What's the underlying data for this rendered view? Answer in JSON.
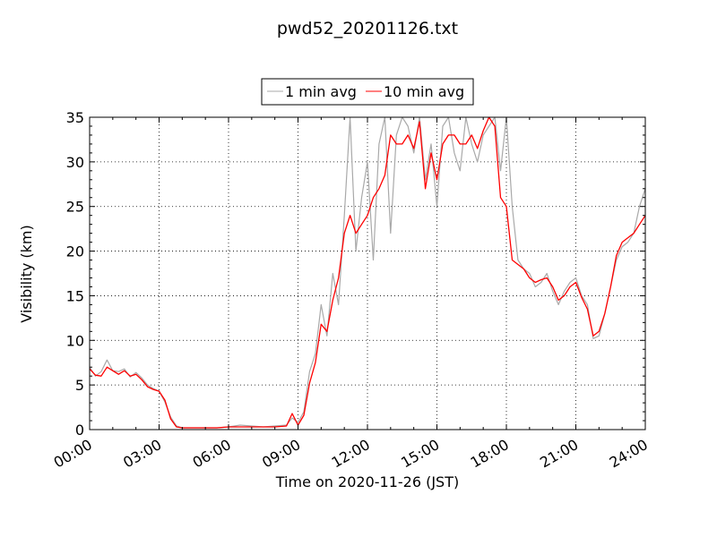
{
  "chart_data": {
    "type": "line",
    "title": "pwd52_20201126.txt",
    "xlabel": "Time on 2020-11-26 (JST)",
    "ylabel": "Visibility (km)",
    "xlim": [
      "00:00",
      "24:00"
    ],
    "ylim": [
      0,
      35
    ],
    "xticks": [
      "00:00",
      "03:00",
      "06:00",
      "09:00",
      "12:00",
      "15:00",
      "18:00",
      "21:00",
      "24:00"
    ],
    "yticks": [
      "0",
      "5",
      "10",
      "15",
      "20",
      "25",
      "30",
      "35"
    ],
    "grid": true,
    "legend_position": "top-center",
    "x_unit": "hours",
    "series": [
      {
        "name": "1 min avg",
        "color": "#a9a9a9",
        "x": [
          0,
          0.25,
          0.5,
          0.75,
          1.0,
          1.25,
          1.5,
          1.75,
          2.0,
          2.25,
          2.5,
          2.75,
          3.0,
          3.25,
          3.5,
          3.75,
          4.0,
          4.5,
          5.0,
          5.5,
          6.0,
          6.5,
          7.0,
          7.5,
          8.0,
          8.5,
          8.75,
          9.0,
          9.25,
          9.5,
          9.75,
          10.0,
          10.25,
          10.5,
          10.75,
          11.0,
          11.25,
          11.5,
          11.75,
          12.0,
          12.25,
          12.5,
          12.75,
          13.0,
          13.25,
          13.5,
          13.75,
          14.0,
          14.25,
          14.5,
          14.75,
          15.0,
          15.25,
          15.5,
          15.75,
          16.0,
          16.25,
          16.5,
          16.75,
          17.0,
          17.25,
          17.5,
          17.75,
          18.0,
          18.25,
          18.5,
          18.75,
          19.0,
          19.25,
          19.5,
          19.75,
          20.0,
          20.25,
          20.5,
          20.75,
          21.0,
          21.25,
          21.5,
          21.75,
          22.0,
          22.25,
          22.5,
          22.75,
          23.0,
          23.25,
          23.5,
          23.75,
          24.0
        ],
        "values": [
          7.0,
          6.0,
          6.5,
          7.8,
          6.6,
          6.5,
          6.8,
          5.9,
          6.4,
          5.8,
          5.0,
          4.6,
          4.3,
          3.1,
          1.4,
          0.4,
          0.2,
          0.2,
          0.2,
          0.2,
          0.3,
          0.5,
          0.4,
          0.3,
          0.4,
          0.5,
          1.3,
          0.8,
          2.0,
          6.5,
          8.5,
          14.0,
          10.5,
          17.5,
          14.0,
          24.0,
          35.0,
          20.0,
          26.0,
          30.0,
          19.0,
          32.0,
          35.0,
          22.0,
          33.0,
          35.0,
          34.0,
          31.0,
          35.0,
          28.0,
          32.0,
          25.0,
          34.0,
          35.0,
          31.0,
          29.0,
          35.0,
          32.0,
          30.0,
          33.0,
          34.0,
          35.0,
          29.0,
          35.0,
          25.0,
          19.0,
          18.0,
          17.5,
          16.0,
          16.5,
          17.5,
          15.5,
          14.0,
          15.5,
          16.5,
          17.0,
          15.0,
          14.0,
          10.2,
          10.5,
          13.0,
          16.0,
          19.0,
          20.5,
          21.0,
          22.0,
          25.0,
          27.0
        ]
      },
      {
        "name": "10 min avg",
        "color": "#ff0000",
        "x": [
          0,
          0.25,
          0.5,
          0.75,
          1.0,
          1.25,
          1.5,
          1.75,
          2.0,
          2.25,
          2.5,
          2.75,
          3.0,
          3.25,
          3.5,
          3.75,
          4.0,
          4.5,
          5.0,
          5.5,
          6.0,
          6.5,
          7.0,
          7.5,
          8.0,
          8.5,
          8.75,
          9.0,
          9.25,
          9.5,
          9.75,
          10.0,
          10.25,
          10.5,
          10.75,
          11.0,
          11.25,
          11.5,
          11.75,
          12.0,
          12.25,
          12.5,
          12.75,
          13.0,
          13.25,
          13.5,
          13.75,
          14.0,
          14.25,
          14.5,
          14.75,
          15.0,
          15.25,
          15.5,
          15.75,
          16.0,
          16.25,
          16.5,
          16.75,
          17.0,
          17.25,
          17.5,
          17.75,
          18.0,
          18.25,
          18.5,
          18.75,
          19.0,
          19.25,
          19.5,
          19.75,
          20.0,
          20.25,
          20.5,
          20.75,
          21.0,
          21.25,
          21.5,
          21.75,
          22.0,
          22.25,
          22.5,
          22.75,
          23.0,
          23.25,
          23.5,
          23.75,
          24.0
        ],
        "values": [
          6.8,
          6.1,
          6.0,
          7.0,
          6.6,
          6.2,
          6.6,
          6.0,
          6.2,
          5.6,
          4.8,
          4.5,
          4.3,
          3.3,
          1.2,
          0.3,
          0.2,
          0.2,
          0.2,
          0.2,
          0.3,
          0.3,
          0.3,
          0.3,
          0.3,
          0.4,
          1.8,
          0.5,
          1.6,
          5.2,
          7.5,
          11.8,
          11.0,
          14.5,
          17.0,
          22.0,
          24.0,
          22.0,
          23.0,
          24.0,
          26.0,
          27.0,
          28.5,
          33.0,
          32.0,
          32.0,
          33.0,
          31.5,
          34.5,
          27.0,
          31.0,
          28.0,
          32.0,
          33.0,
          33.0,
          32.0,
          32.0,
          33.0,
          31.5,
          33.5,
          35.0,
          34.0,
          26.0,
          25.0,
          19.0,
          18.5,
          18.0,
          17.0,
          16.5,
          16.8,
          17.0,
          16.0,
          14.5,
          15.0,
          16.0,
          16.5,
          14.8,
          13.5,
          10.5,
          11.0,
          13.0,
          16.0,
          19.5,
          21.0,
          21.5,
          22.0,
          23.0,
          24.0
        ]
      }
    ]
  }
}
